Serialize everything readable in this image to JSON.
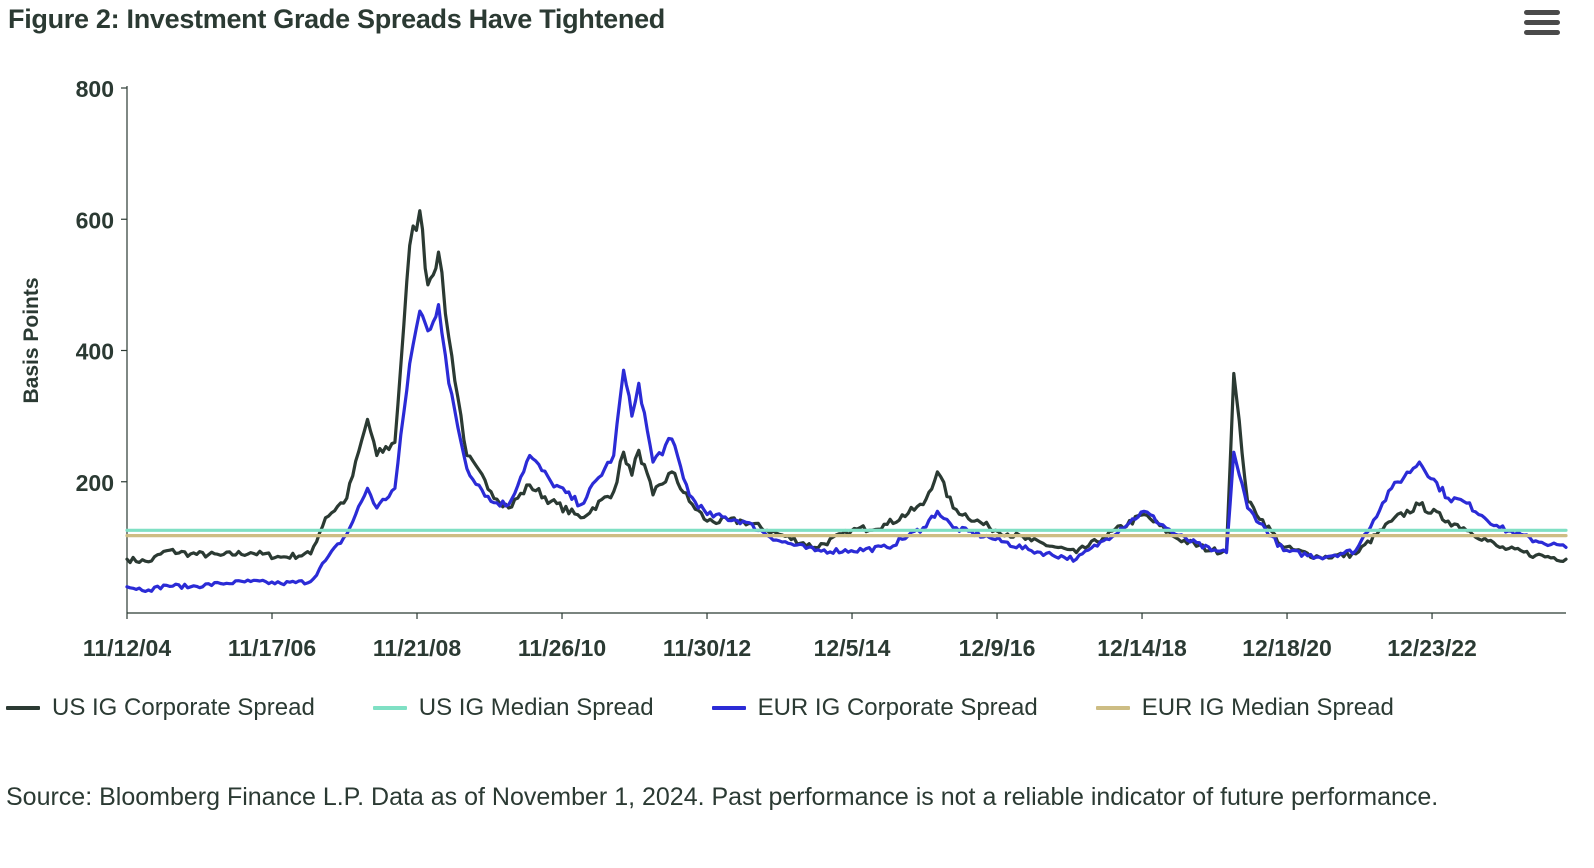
{
  "title": "Figure 2: Investment Grade Spreads Have Tightened",
  "menu_icon": "hamburger-menu-icon",
  "source": "Source: Bloomberg Finance L.P. Data as of November 1, 2024. Past performance is not a reliable indicator of future performance.",
  "legend": [
    {
      "label": "US IG Corporate Spread",
      "color": "#2b3a33"
    },
    {
      "label": "US IG Median Spread",
      "color": "#7fe0c4"
    },
    {
      "label": "EUR IG Corporate Spread",
      "color": "#2b2bd6"
    },
    {
      "label": "EUR IG Median Spread",
      "color": "#cdbd84"
    }
  ],
  "chart_data": {
    "type": "line",
    "title": "Figure 2: Investment Grade Spreads Have Tightened",
    "ylabel": "Basis Points",
    "xlabel": "",
    "ylim": [
      0,
      800
    ],
    "xlim": [
      "2004-11-12",
      "2024-11-01"
    ],
    "yticks": [
      200,
      400,
      600,
      800
    ],
    "xticks": [
      "11/12/04",
      "11/17/06",
      "11/21/08",
      "11/26/10",
      "11/30/12",
      "12/5/14",
      "12/9/16",
      "12/14/18",
      "12/18/20",
      "12/23/22"
    ],
    "grid": false,
    "legend_position": "bottom",
    "series": [
      {
        "name": "US IG Corporate Spread",
        "color": "#2b3a33",
        "points": [
          [
            "2004-11-12",
            82
          ],
          [
            "2005-03-01",
            78
          ],
          [
            "2005-06-01",
            95
          ],
          [
            "2005-10-01",
            90
          ],
          [
            "2006-03-01",
            88
          ],
          [
            "2006-08-01",
            92
          ],
          [
            "2007-01-01",
            85
          ],
          [
            "2007-06-01",
            90
          ],
          [
            "2007-08-15",
            145
          ],
          [
            "2007-12-01",
            175
          ],
          [
            "2008-03-15",
            295
          ],
          [
            "2008-05-01",
            240
          ],
          [
            "2008-08-01",
            260
          ],
          [
            "2008-10-15",
            560
          ],
          [
            "2008-12-05",
            613
          ],
          [
            "2009-01-15",
            500
          ],
          [
            "2009-03-10",
            550
          ],
          [
            "2009-05-01",
            420
          ],
          [
            "2009-08-01",
            240
          ],
          [
            "2009-12-01",
            185
          ],
          [
            "2010-03-01",
            160
          ],
          [
            "2010-06-15",
            195
          ],
          [
            "2010-10-01",
            170
          ],
          [
            "2011-03-01",
            145
          ],
          [
            "2011-08-15",
            185
          ],
          [
            "2011-10-04",
            245
          ],
          [
            "2011-11-15",
            210
          ],
          [
            "2011-12-20",
            248
          ],
          [
            "2012-03-01",
            180
          ],
          [
            "2012-06-05",
            215
          ],
          [
            "2012-09-01",
            170
          ],
          [
            "2012-12-01",
            140
          ],
          [
            "2013-06-01",
            140
          ],
          [
            "2013-12-01",
            120
          ],
          [
            "2014-06-01",
            100
          ],
          [
            "2014-12-01",
            125
          ],
          [
            "2015-06-01",
            135
          ],
          [
            "2015-12-01",
            165
          ],
          [
            "2016-02-11",
            215
          ],
          [
            "2016-05-01",
            160
          ],
          [
            "2016-11-01",
            130
          ],
          [
            "2017-06-01",
            110
          ],
          [
            "2018-01-15",
            92
          ],
          [
            "2018-06-01",
            115
          ],
          [
            "2018-12-24",
            150
          ],
          [
            "2019-06-01",
            115
          ],
          [
            "2019-12-01",
            95
          ],
          [
            "2020-02-15",
            95
          ],
          [
            "2020-03-23",
            365
          ],
          [
            "2020-06-01",
            170
          ],
          [
            "2020-12-01",
            100
          ],
          [
            "2021-06-01",
            85
          ],
          [
            "2021-12-01",
            90
          ],
          [
            "2022-06-01",
            140
          ],
          [
            "2022-10-20",
            165
          ],
          [
            "2023-03-15",
            140
          ],
          [
            "2023-06-01",
            130
          ],
          [
            "2023-12-01",
            100
          ],
          [
            "2024-06-01",
            88
          ],
          [
            "2024-11-01",
            82
          ]
        ]
      },
      {
        "name": "EUR IG Corporate Spread",
        "color": "#2b2bd6",
        "points": [
          [
            "2004-11-12",
            40
          ],
          [
            "2005-03-01",
            35
          ],
          [
            "2005-06-01",
            42
          ],
          [
            "2005-10-01",
            40
          ],
          [
            "2006-03-01",
            45
          ],
          [
            "2006-08-01",
            48
          ],
          [
            "2007-01-01",
            45
          ],
          [
            "2007-06-01",
            48
          ],
          [
            "2007-08-15",
            80
          ],
          [
            "2007-12-01",
            120
          ],
          [
            "2008-03-15",
            190
          ],
          [
            "2008-05-01",
            160
          ],
          [
            "2008-08-01",
            190
          ],
          [
            "2008-10-15",
            380
          ],
          [
            "2008-12-05",
            460
          ],
          [
            "2009-01-15",
            430
          ],
          [
            "2009-03-10",
            470
          ],
          [
            "2009-05-01",
            350
          ],
          [
            "2009-08-01",
            220
          ],
          [
            "2009-12-01",
            170
          ],
          [
            "2010-03-01",
            165
          ],
          [
            "2010-06-15",
            240
          ],
          [
            "2010-10-01",
            200
          ],
          [
            "2011-03-01",
            165
          ],
          [
            "2011-08-15",
            240
          ],
          [
            "2011-10-04",
            370
          ],
          [
            "2011-11-15",
            300
          ],
          [
            "2011-12-20",
            350
          ],
          [
            "2012-03-01",
            230
          ],
          [
            "2012-06-05",
            265
          ],
          [
            "2012-09-01",
            180
          ],
          [
            "2012-12-01",
            150
          ],
          [
            "2013-06-01",
            140
          ],
          [
            "2013-12-01",
            110
          ],
          [
            "2014-06-01",
            95
          ],
          [
            "2014-12-01",
            95
          ],
          [
            "2015-06-01",
            100
          ],
          [
            "2015-12-01",
            130
          ],
          [
            "2016-02-11",
            155
          ],
          [
            "2016-05-01",
            130
          ],
          [
            "2016-11-01",
            115
          ],
          [
            "2017-06-01",
            95
          ],
          [
            "2018-01-15",
            82
          ],
          [
            "2018-06-01",
            110
          ],
          [
            "2018-12-24",
            155
          ],
          [
            "2019-06-01",
            120
          ],
          [
            "2019-12-01",
            95
          ],
          [
            "2020-02-15",
            92
          ],
          [
            "2020-03-23",
            245
          ],
          [
            "2020-06-01",
            160
          ],
          [
            "2020-12-01",
            95
          ],
          [
            "2021-06-01",
            85
          ],
          [
            "2021-12-01",
            95
          ],
          [
            "2022-06-01",
            190
          ],
          [
            "2022-10-20",
            230
          ],
          [
            "2023-03-15",
            175
          ],
          [
            "2023-06-01",
            170
          ],
          [
            "2023-12-01",
            130
          ],
          [
            "2024-06-01",
            110
          ],
          [
            "2024-11-01",
            100
          ]
        ]
      },
      {
        "name": "US IG Median Spread",
        "color": "#7fe0c4",
        "points": [
          [
            "2004-11-12",
            126
          ],
          [
            "2024-11-01",
            126
          ]
        ]
      },
      {
        "name": "EUR IG Median Spread",
        "color": "#cdbd84",
        "points": [
          [
            "2004-11-12",
            118
          ],
          [
            "2024-11-01",
            118
          ]
        ]
      }
    ]
  }
}
